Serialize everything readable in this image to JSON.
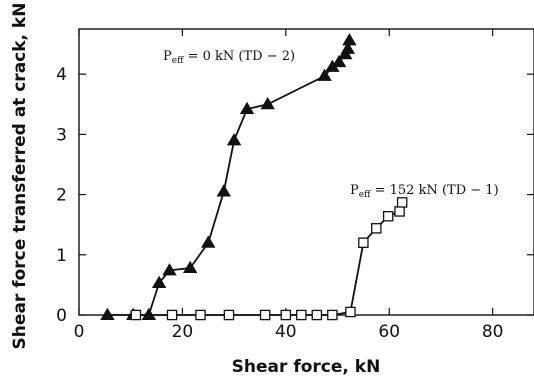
{
  "chart_data": {
    "type": "line",
    "xlabel": "Shear force, kN",
    "ylabel": "Shear force transferred at crack, kN",
    "xlim": [
      0,
      88
    ],
    "ylim": [
      0,
      4.75
    ],
    "x_ticks": [
      0,
      20,
      40,
      60,
      80
    ],
    "y_ticks": [
      0,
      1,
      2,
      3,
      4
    ],
    "grid": false,
    "legend": "none",
    "series": [
      {
        "name": "Peff = 0 kN (TD − 2)",
        "label_base": "P",
        "label_sub": "eff",
        "label_rest": " = 0 kN (TD − 2)",
        "marker": "filled-triangle",
        "color": "#111111",
        "x": [
          5.5,
          10.5,
          13.5,
          15.5,
          17.5,
          21.5,
          25,
          28,
          30,
          32.5,
          36.5,
          47.5,
          49,
          50.3,
          51.5,
          52,
          52.3
        ],
        "y": [
          0,
          0,
          0,
          0.53,
          0.74,
          0.78,
          1.2,
          2.05,
          2.9,
          3.42,
          3.5,
          3.97,
          4.12,
          4.2,
          4.33,
          4.42,
          4.56
        ]
      },
      {
        "name": "Peff = 152 kN (TD − 1)",
        "label_base": "P",
        "label_sub": "eff",
        "label_rest": " = 152 kN (TD − 1)",
        "marker": "open-square",
        "color": "#111111",
        "x": [
          11,
          18,
          23.5,
          29,
          36,
          40,
          43,
          46,
          49,
          52.5,
          55,
          57.5,
          59.8,
          62,
          62.5
        ],
        "y": [
          0,
          0,
          0,
          0,
          0,
          0,
          0,
          0,
          0,
          0.05,
          1.2,
          1.44,
          1.64,
          1.72,
          1.87
        ]
      }
    ]
  }
}
